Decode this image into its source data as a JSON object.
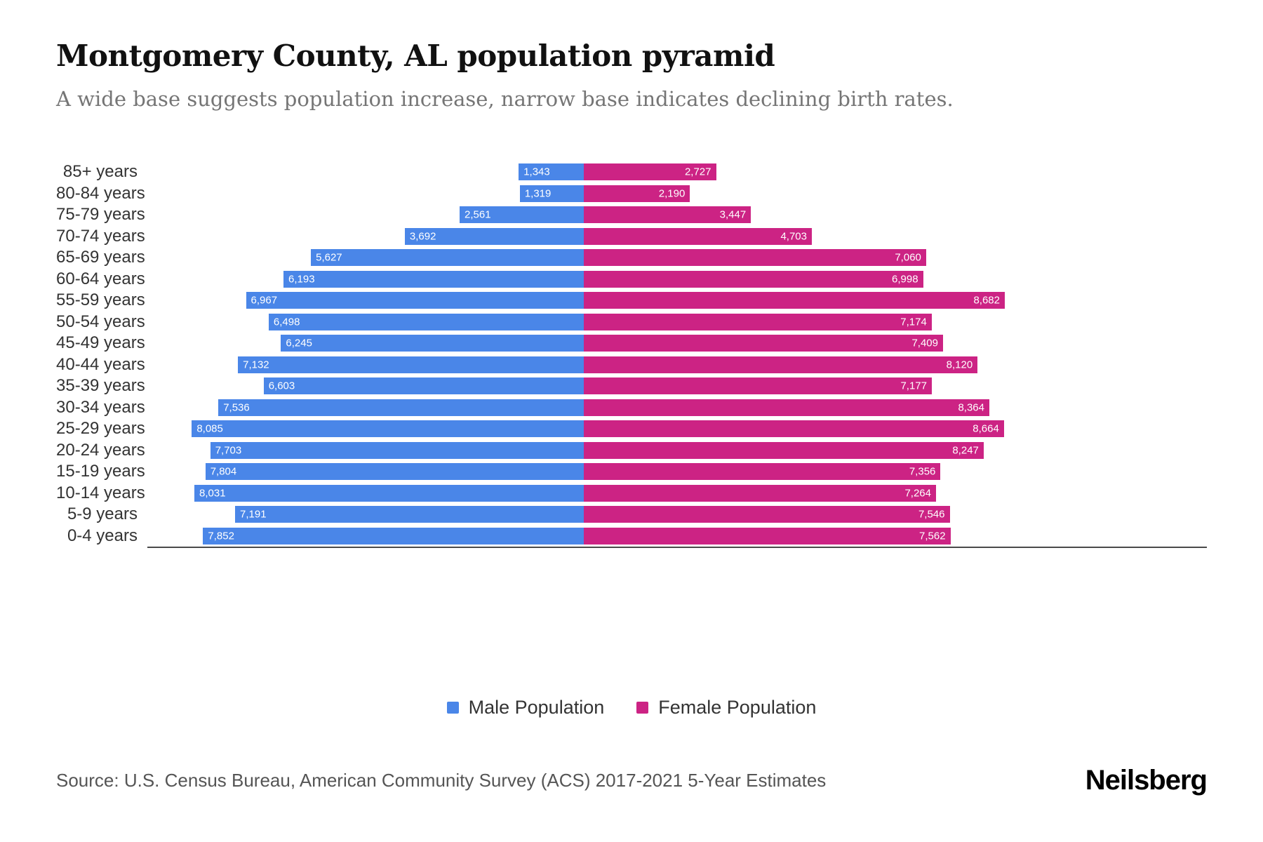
{
  "title": "Montgomery County, AL population pyramid",
  "subtitle": "A wide base suggests population increase, narrow base indicates declining birth rates.",
  "legend": {
    "male": "Male Population",
    "female": "Female Population"
  },
  "source": "Source: U.S. Census Bureau, American Community Survey (ACS) 2017-2021 5-Year Estimates",
  "logo": "Neilsberg",
  "colors": {
    "male": "#4a86e8",
    "female": "#cc2384",
    "subtitle": "#757575",
    "axis": "#4a4a4a"
  },
  "chart_data": {
    "type": "bar",
    "variant": "population-pyramid",
    "title": "Montgomery County, AL population pyramid",
    "categories": [
      "85+ years",
      "80-84 years",
      "75-79 years",
      "70-74 years",
      "65-69 years",
      "60-64 years",
      "55-59 years",
      "50-54 years",
      "45-49 years",
      "40-44 years",
      "35-39 years",
      "30-34 years",
      "25-29 years",
      "20-24 years",
      "15-19 years",
      "10-14 years",
      "5-9 years",
      "0-4 years"
    ],
    "series": [
      {
        "name": "Male Population",
        "direction": "left",
        "color": "#4a86e8",
        "values": [
          1343,
          1319,
          2561,
          3692,
          5627,
          6193,
          6967,
          6498,
          6245,
          7132,
          6603,
          7536,
          8085,
          7703,
          7804,
          8031,
          7191,
          7852
        ]
      },
      {
        "name": "Female Population",
        "direction": "right",
        "color": "#cc2384",
        "values": [
          2727,
          2190,
          3447,
          4703,
          7060,
          6998,
          8682,
          7174,
          7409,
          8120,
          7177,
          8364,
          8664,
          8247,
          7356,
          7264,
          7546,
          7562
        ]
      }
    ],
    "value_labels": true,
    "grid": false,
    "legend_position": "bottom",
    "axis_max": 8664
  }
}
